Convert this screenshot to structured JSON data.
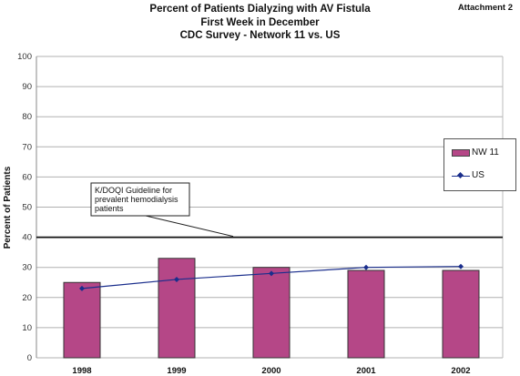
{
  "header": {
    "attachment": "Attachment 2",
    "title_lines": [
      "Percent of Patients Dialyzing with AV Fistula",
      "First Week in December",
      "CDC Survey - Network 11 vs. US"
    ]
  },
  "chart_data": {
    "type": "bar",
    "title": "Percent of Patients Dialyzing with AV Fistula First Week in December CDC Survey - Network 11 vs. US",
    "xlabel": "",
    "ylabel": "Percent of Patients",
    "ylim": [
      0,
      100
    ],
    "yticks": [
      0,
      10,
      20,
      30,
      40,
      50,
      60,
      70,
      80,
      90,
      100
    ],
    "grid": true,
    "legend_position": "right",
    "categories": [
      "1998",
      "1999",
      "2000",
      "2001",
      "2002"
    ],
    "series": [
      {
        "name": "NW 11",
        "type": "bar",
        "values": [
          25,
          33,
          30,
          29,
          29
        ],
        "color": "#b54787"
      },
      {
        "name": "US",
        "type": "line",
        "values": [
          23,
          26,
          28,
          30,
          30.3
        ],
        "color": "#1a2e8c"
      }
    ],
    "reference_line": {
      "value": 40,
      "label": "K/DOQI Guideline for prevalent hemodialysis patients",
      "label_lines": [
        "K/DOQI Guideline for",
        "prevalent hemodialysis",
        "patients"
      ]
    }
  }
}
